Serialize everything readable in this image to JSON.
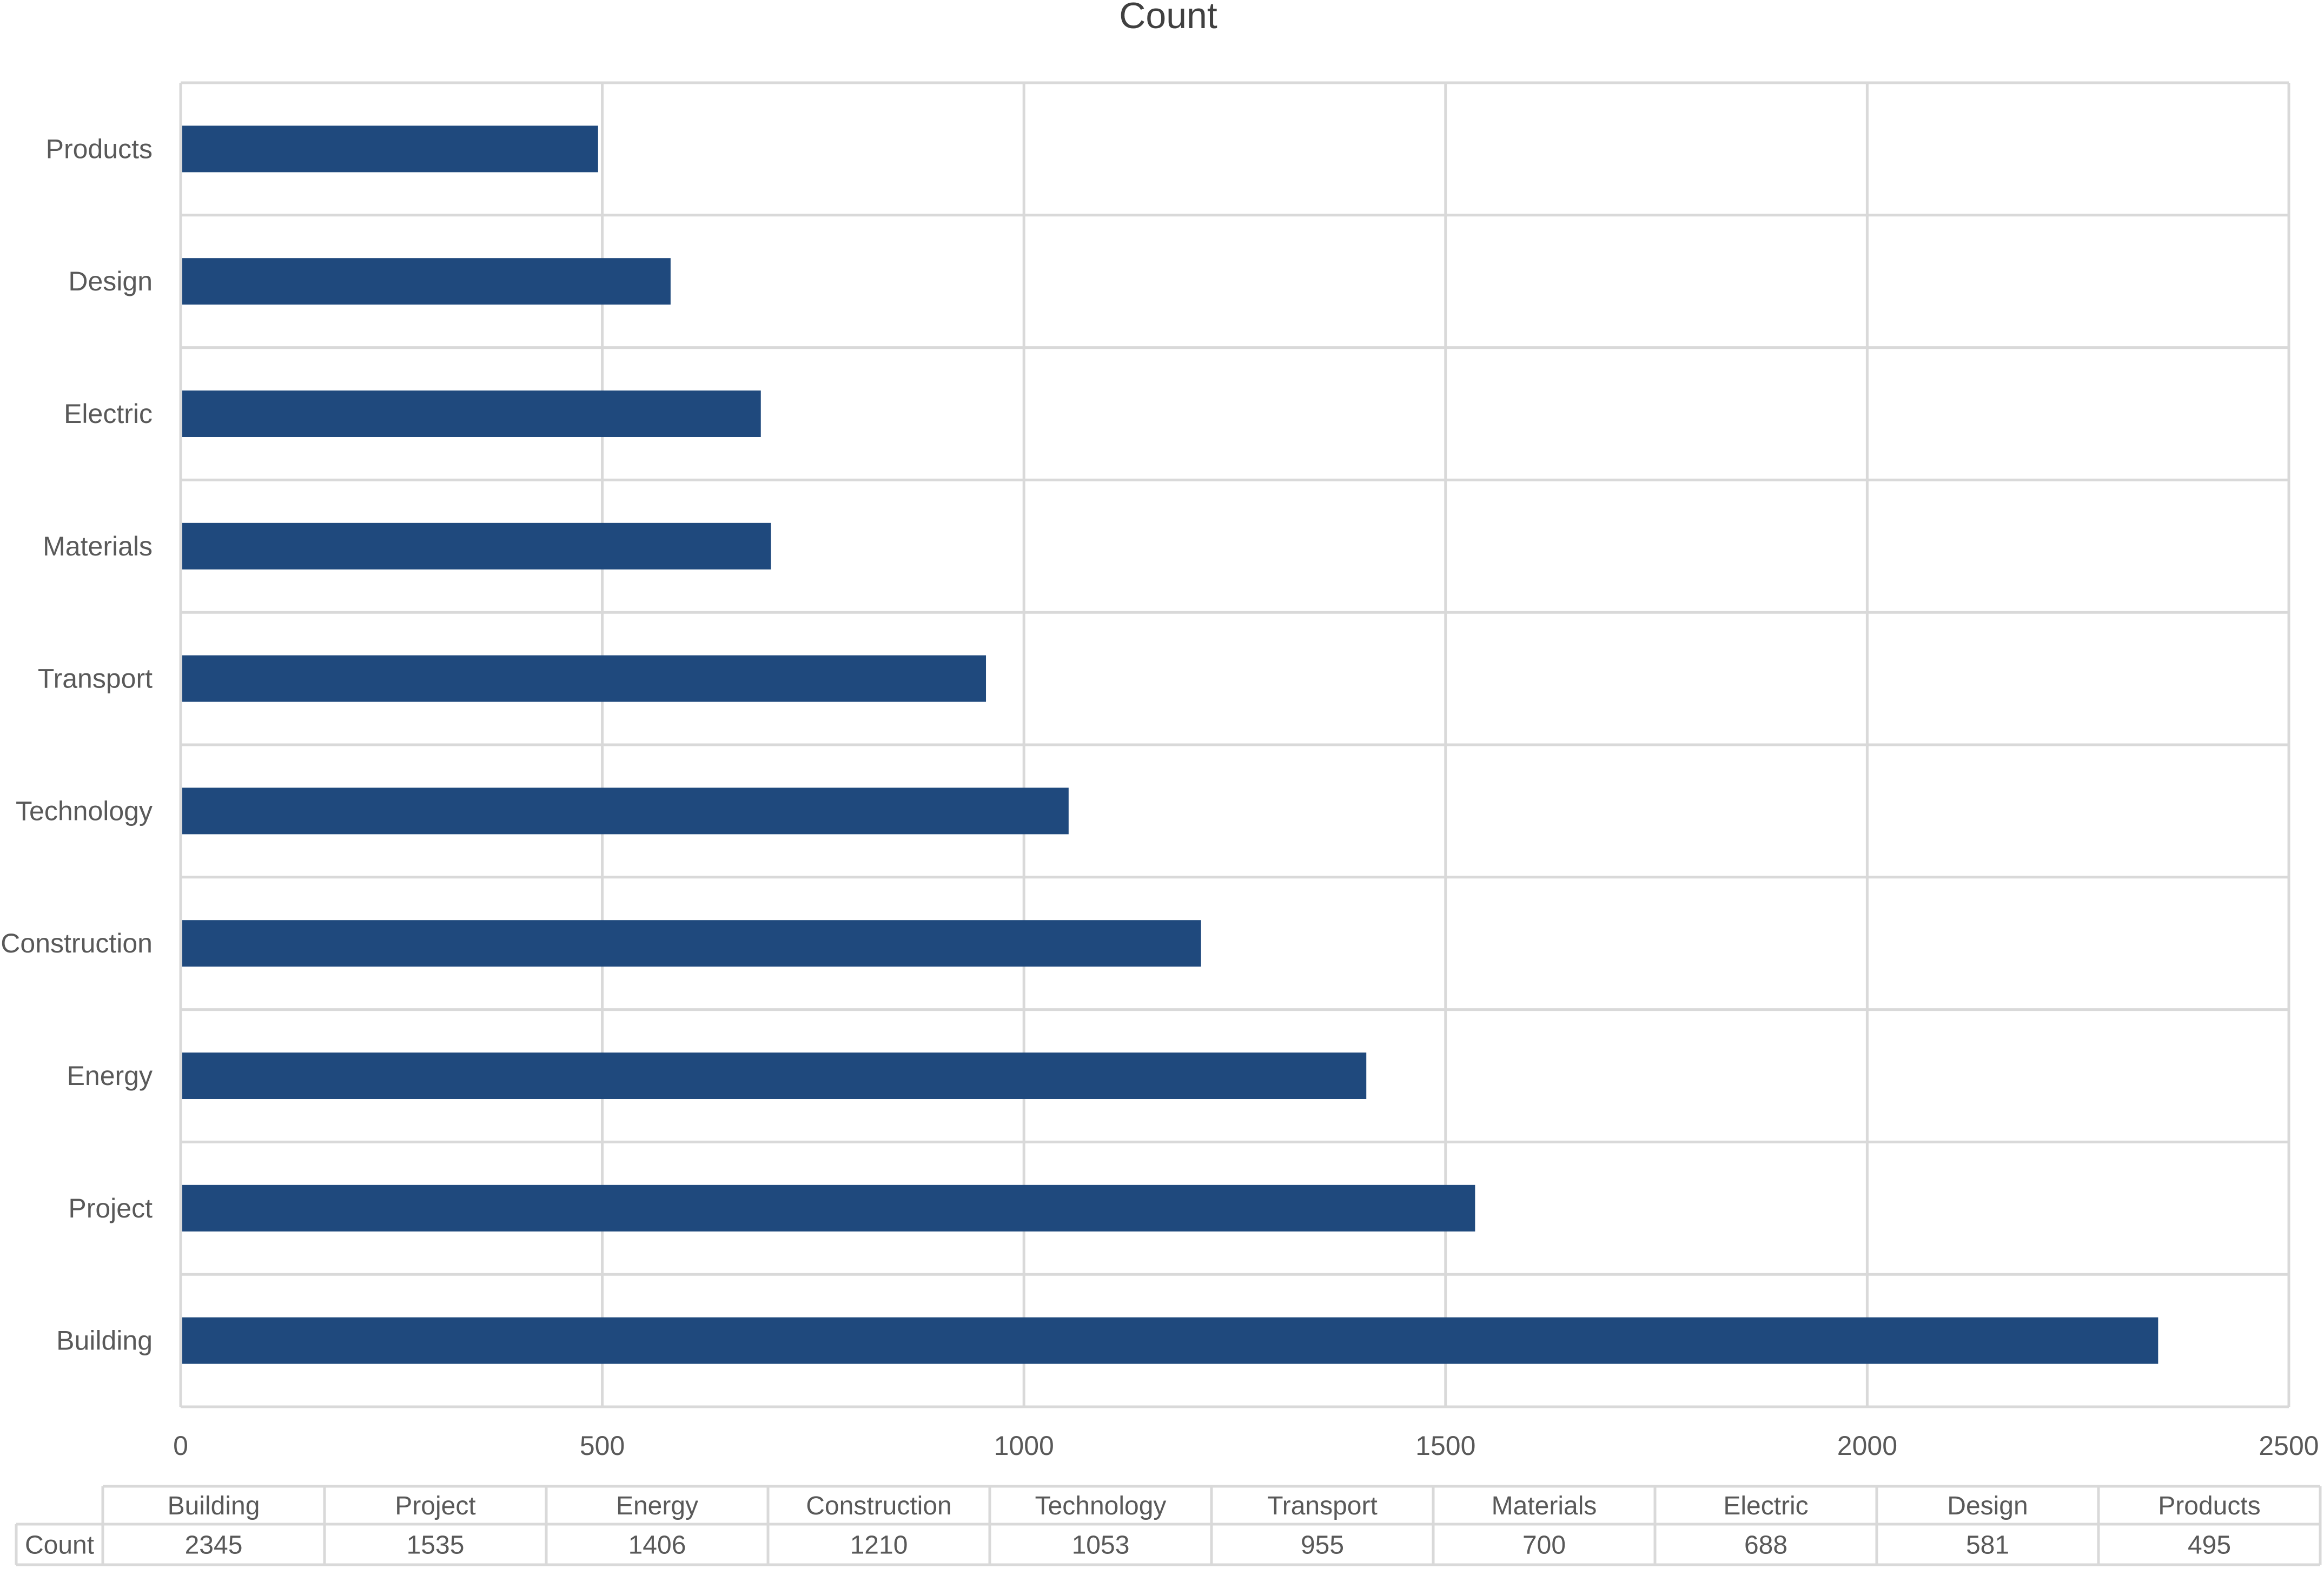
{
  "chart_data": {
    "type": "bar",
    "orientation": "horizontal",
    "title": "Count",
    "xlabel": "",
    "ylabel": "",
    "categories": [
      "Building",
      "Project",
      "Energy",
      "Construction",
      "Technology",
      "Transport",
      "Materials",
      "Electric",
      "Design",
      "Products"
    ],
    "series": [
      {
        "name": "Count",
        "values": [
          2345,
          1535,
          1406,
          1210,
          1053,
          955,
          700,
          688,
          581,
          495
        ],
        "color": "#1f497d"
      }
    ],
    "xlim": [
      0,
      2500
    ],
    "x_ticks": [
      "0",
      "500",
      "1000",
      "1500",
      "2000",
      "2500"
    ],
    "grid": true,
    "legend": "none",
    "data_table": {
      "row_label": "Count",
      "columns": [
        "Building",
        "Project",
        "Energy",
        "Construction",
        "Technology",
        "Transport",
        "Materials",
        "Electric",
        "Design",
        "Products"
      ],
      "values": [
        "2345",
        "1535",
        "1406",
        "1210",
        "1053",
        "955",
        "700",
        "688",
        "581",
        "495"
      ]
    }
  },
  "colors": {
    "bar": "#1f497d",
    "grid": "#d9d9d9",
    "text": "#595959",
    "title": "#404040",
    "background": "#ffffff"
  }
}
